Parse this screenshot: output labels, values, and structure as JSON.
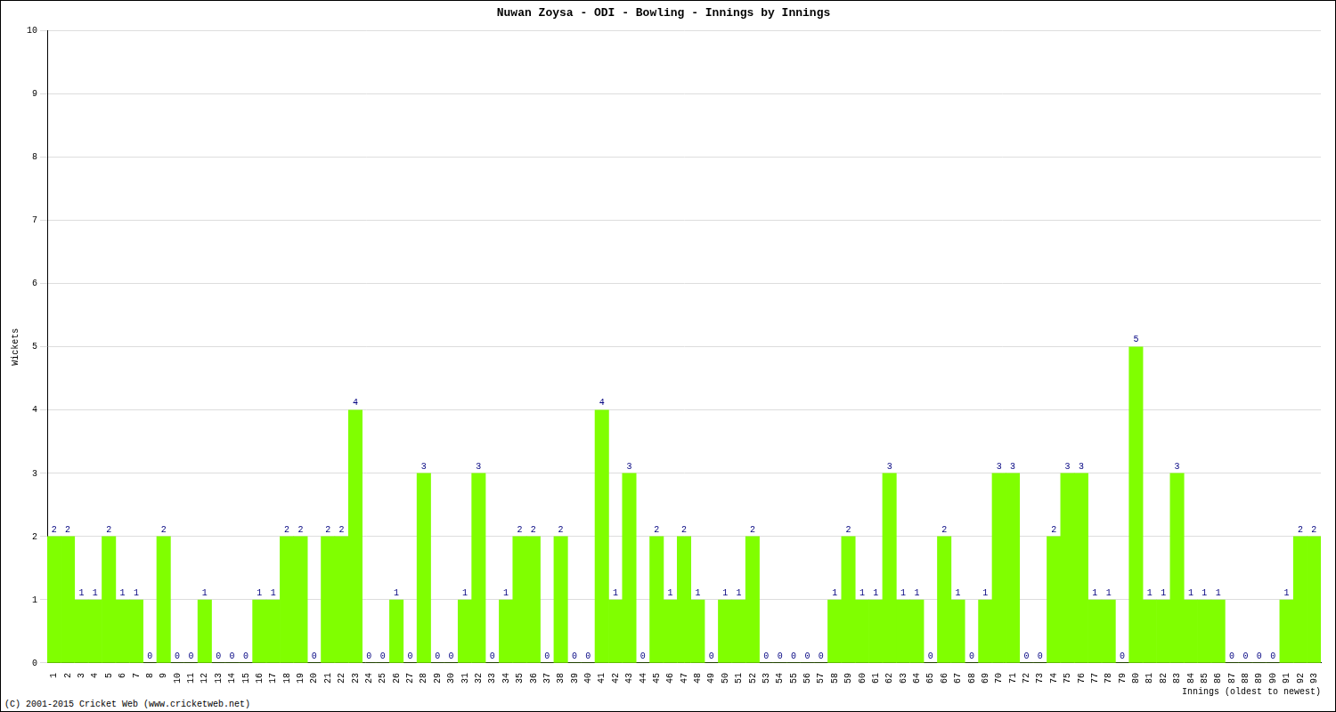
{
  "chart_data": {
    "type": "bar",
    "title": "Nuwan Zoysa - ODI - Bowling - Innings by Innings",
    "x_label": "Innings (oldest to newest)",
    "y_label": "Wickets",
    "annotation": "(C) 2001-2015 Cricket Web (www.cricketweb.net)",
    "categories": [
      1,
      2,
      3,
      4,
      5,
      6,
      7,
      8,
      9,
      10,
      11,
      12,
      13,
      14,
      15,
      16,
      17,
      18,
      19,
      20,
      21,
      22,
      23,
      24,
      25,
      26,
      27,
      28,
      29,
      30,
      31,
      32,
      33,
      34,
      35,
      36,
      37,
      38,
      39,
      40,
      41,
      42,
      43,
      44,
      45,
      46,
      47,
      48,
      49,
      50,
      51,
      52,
      53,
      54,
      55,
      56,
      57,
      58,
      59,
      60,
      61,
      62,
      63,
      64,
      65,
      66,
      67,
      68,
      69,
      70,
      71,
      72,
      73,
      74,
      75,
      76,
      77,
      78,
      79,
      80,
      81,
      82,
      83,
      84,
      85,
      86,
      87,
      88,
      89,
      90,
      91,
      92,
      93
    ],
    "values": [
      2,
      2,
      1,
      1,
      2,
      1,
      1,
      0,
      2,
      0,
      0,
      1,
      0,
      0,
      0,
      1,
      1,
      2,
      2,
      0,
      2,
      2,
      4,
      0,
      0,
      1,
      0,
      3,
      0,
      0,
      1,
      3,
      0,
      1,
      2,
      2,
      0,
      2,
      0,
      0,
      4,
      1,
      3,
      0,
      2,
      1,
      2,
      1,
      0,
      1,
      1,
      2,
      0,
      0,
      0,
      0,
      0,
      1,
      2,
      1,
      1,
      3,
      1,
      1,
      0,
      2,
      1,
      0,
      1,
      3,
      3,
      0,
      0,
      2,
      3,
      3,
      1,
      1,
      0,
      5,
      1,
      1,
      3,
      1,
      1,
      1,
      0,
      0,
      0,
      0,
      1,
      2,
      2
    ],
    "color": "#80ff00",
    "ylim": [
      0,
      10
    ],
    "yticks": [
      0,
      1,
      2,
      3,
      4,
      5,
      6,
      7,
      8,
      9,
      10
    ],
    "grid": true,
    "data_labels": true
  }
}
